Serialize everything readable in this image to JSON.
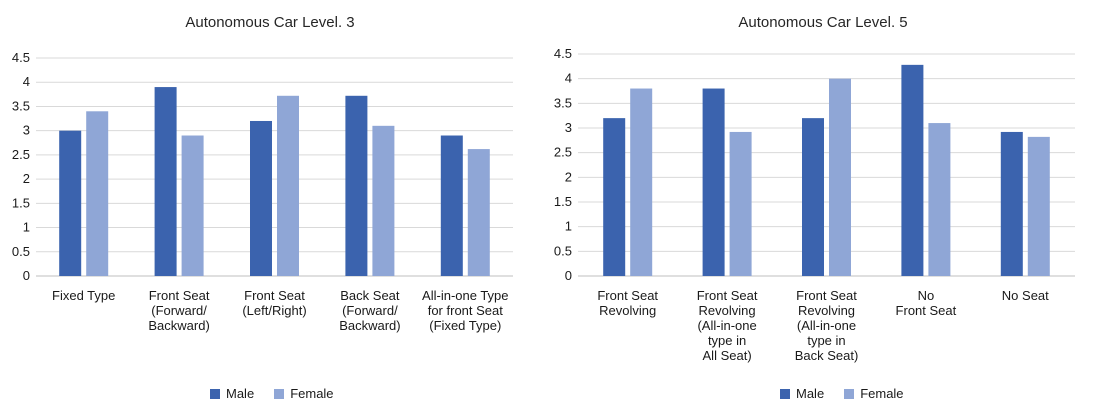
{
  "chart_data": [
    {
      "type": "bar",
      "title": "Autonomous Car Level. 3",
      "xlabel": "",
      "ylabel": "",
      "ylim": [
        0,
        4.5
      ],
      "yticks": [
        "0",
        "0.5",
        "1",
        "1.5",
        "2",
        "2.5",
        "3",
        "3.5",
        "4",
        "4.5"
      ],
      "categories": [
        [
          "Fixed Type"
        ],
        [
          "Front Seat",
          "(Forward/",
          "Backward)"
        ],
        [
          "Front Seat",
          "(Left/Right)"
        ],
        [
          "Back Seat",
          "(Forward/",
          "Backward)"
        ],
        [
          "All-in-one Type",
          "for front Seat",
          "(Fixed Type)"
        ]
      ],
      "series": [
        {
          "name": "Male",
          "color": "#3B63AE",
          "values": [
            3.0,
            3.9,
            3.2,
            3.72,
            2.9
          ]
        },
        {
          "name": "Female",
          "color": "#8FA6D6",
          "values": [
            3.4,
            2.9,
            3.72,
            3.1,
            2.62
          ]
        }
      ],
      "grid": true,
      "legend": "bottom"
    },
    {
      "type": "bar",
      "title": "Autonomous Car Level. 5",
      "xlabel": "",
      "ylabel": "",
      "ylim": [
        0,
        4.5
      ],
      "yticks": [
        "0",
        "0.5",
        "1",
        "1.5",
        "2",
        "2.5",
        "3",
        "3.5",
        "4",
        "4.5"
      ],
      "categories": [
        [
          "Front Seat",
          "Revolving"
        ],
        [
          "Front Seat",
          "Revolving",
          "(All-in-one",
          "type in",
          "All Seat)"
        ],
        [
          "Front Seat",
          "Revolving",
          "(All-in-one",
          "type in",
          "Back Seat)"
        ],
        [
          "No",
          "Front Seat"
        ],
        [
          "No Seat"
        ]
      ],
      "series": [
        {
          "name": "Male",
          "color": "#3B63AE",
          "values": [
            3.2,
            3.8,
            3.2,
            4.28,
            2.92
          ]
        },
        {
          "name": "Female",
          "color": "#8FA6D6",
          "values": [
            3.8,
            2.92,
            4.0,
            3.1,
            2.82
          ]
        }
      ],
      "grid": true,
      "legend": "bottom"
    }
  ]
}
